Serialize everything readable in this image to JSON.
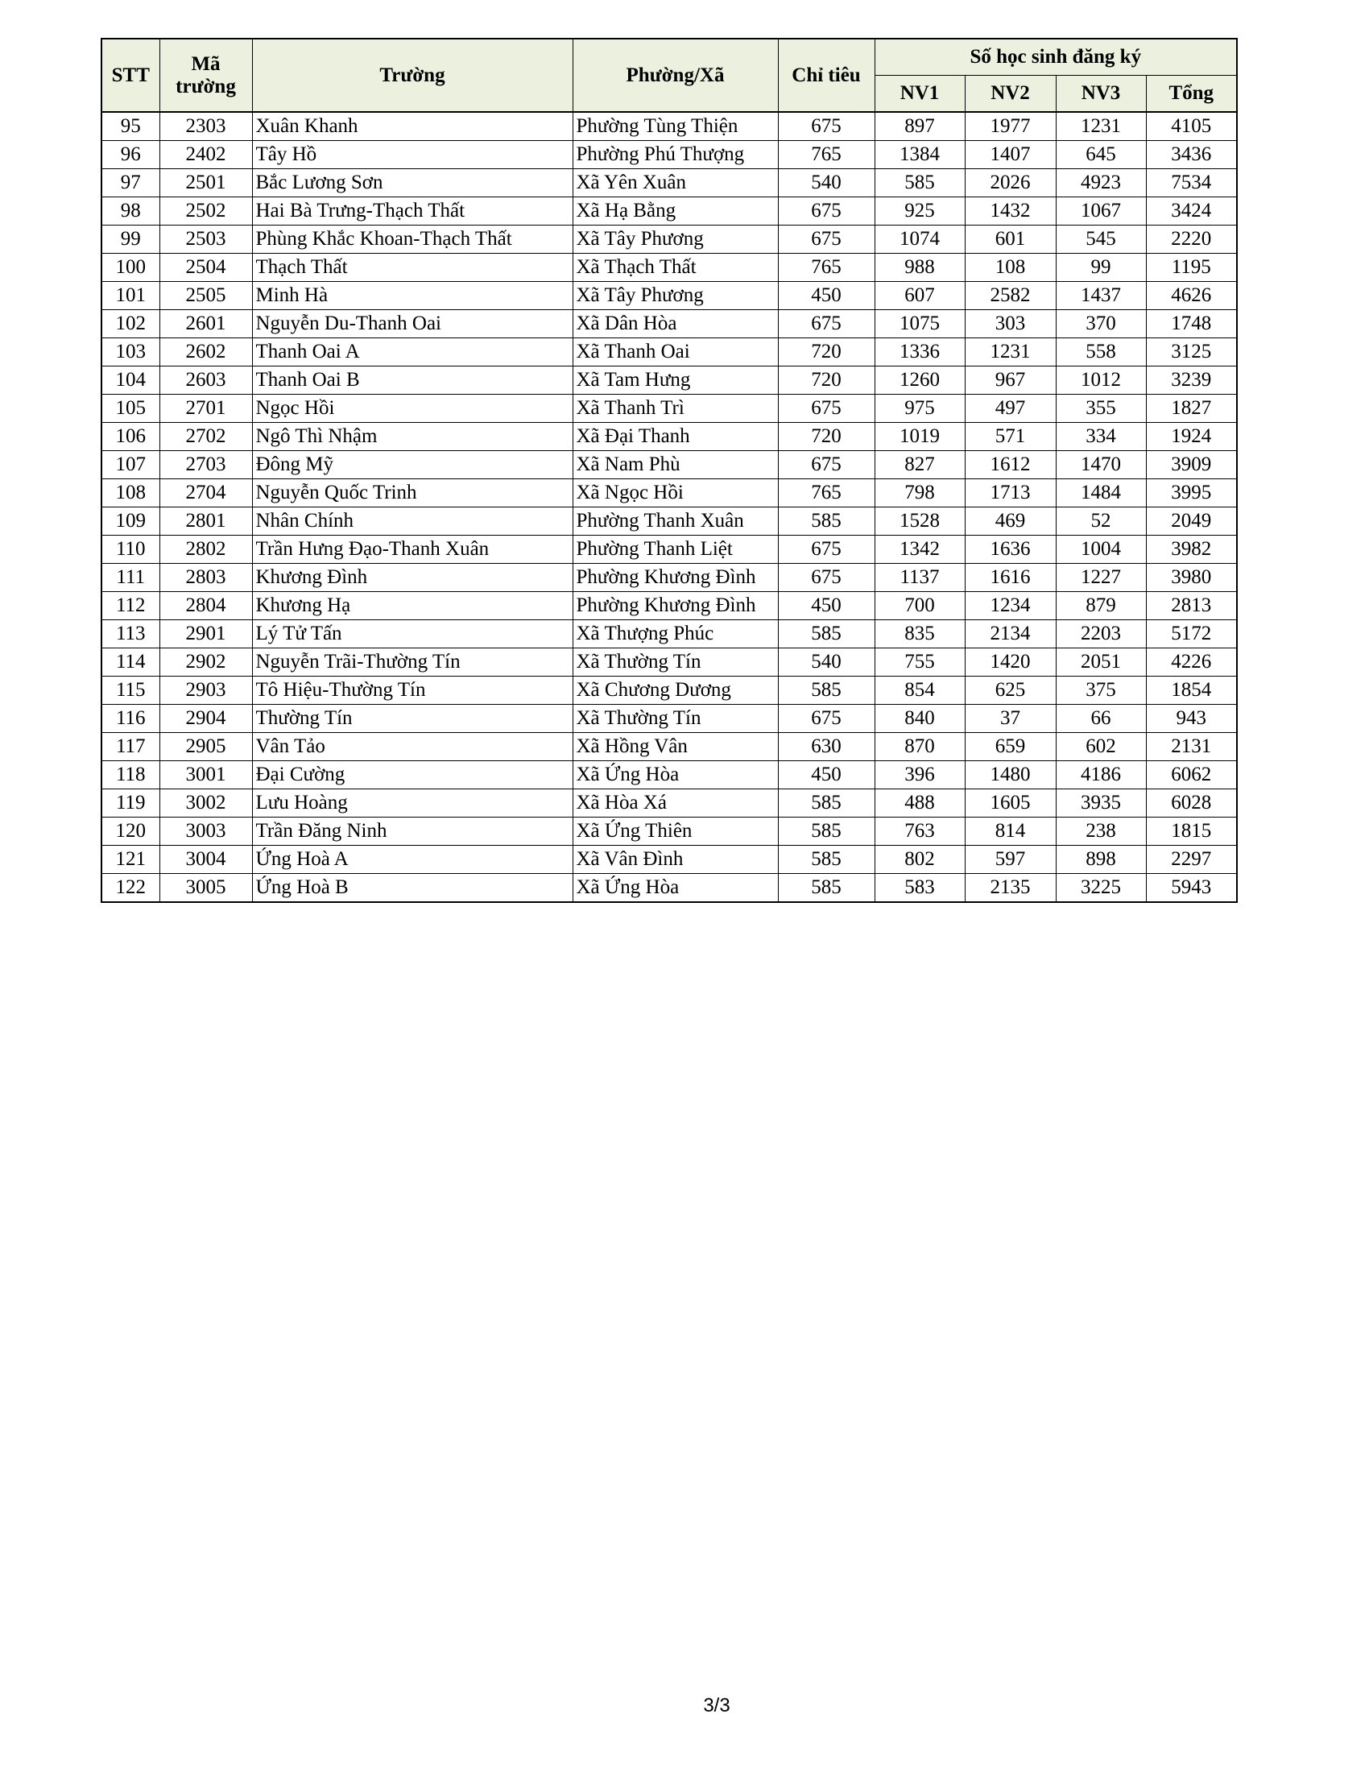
{
  "header": {
    "stt": "STT",
    "ma_truong": "Mã trường",
    "truong": "Trường",
    "phuong_xa": "Phường/Xã",
    "chi_tieu": "Chỉ tiêu",
    "group": "Số học sinh đăng ký",
    "nv1": "NV1",
    "nv2": "NV2",
    "nv3": "NV3",
    "tong": "Tổng"
  },
  "header_fill": "#ebf1de",
  "rows": [
    [
      "95",
      "2303",
      "Xuân Khanh",
      "Phường Tùng Thiện",
      "675",
      "897",
      "1977",
      "1231",
      "4105"
    ],
    [
      "96",
      "2402",
      "Tây Hồ",
      "Phường Phú Thượng",
      "765",
      "1384",
      "1407",
      "645",
      "3436"
    ],
    [
      "97",
      "2501",
      "Bắc Lương Sơn",
      "Xã Yên Xuân",
      "540",
      "585",
      "2026",
      "4923",
      "7534"
    ],
    [
      "98",
      "2502",
      "Hai Bà Trưng-Thạch Thất",
      "Xã Hạ Bằng",
      "675",
      "925",
      "1432",
      "1067",
      "3424"
    ],
    [
      "99",
      "2503",
      "Phùng Khắc Khoan-Thạch Thất",
      "Xã Tây Phương",
      "675",
      "1074",
      "601",
      "545",
      "2220"
    ],
    [
      "100",
      "2504",
      "Thạch Thất",
      "Xã Thạch Thất",
      "765",
      "988",
      "108",
      "99",
      "1195"
    ],
    [
      "101",
      "2505",
      "Minh Hà",
      "Xã Tây Phương",
      "450",
      "607",
      "2582",
      "1437",
      "4626"
    ],
    [
      "102",
      "2601",
      "Nguyễn Du-Thanh Oai",
      "Xã Dân Hòa",
      "675",
      "1075",
      "303",
      "370",
      "1748"
    ],
    [
      "103",
      "2602",
      "Thanh Oai A",
      "Xã Thanh Oai",
      "720",
      "1336",
      "1231",
      "558",
      "3125"
    ],
    [
      "104",
      "2603",
      "Thanh Oai B",
      "Xã Tam Hưng",
      "720",
      "1260",
      "967",
      "1012",
      "3239"
    ],
    [
      "105",
      "2701",
      "Ngọc Hồi",
      "Xã Thanh Trì",
      "675",
      "975",
      "497",
      "355",
      "1827"
    ],
    [
      "106",
      "2702",
      "Ngô Thì Nhậm",
      "Xã Đại Thanh",
      "720",
      "1019",
      "571",
      "334",
      "1924"
    ],
    [
      "107",
      "2703",
      "Đông Mỹ",
      "Xã Nam Phù",
      "675",
      "827",
      "1612",
      "1470",
      "3909"
    ],
    [
      "108",
      "2704",
      "Nguyễn Quốc Trinh",
      "Xã Ngọc Hồi",
      "765",
      "798",
      "1713",
      "1484",
      "3995"
    ],
    [
      "109",
      "2801",
      "Nhân Chính",
      "Phường Thanh Xuân",
      "585",
      "1528",
      "469",
      "52",
      "2049"
    ],
    [
      "110",
      "2802",
      "Trần Hưng Đạo-Thanh Xuân",
      "Phường Thanh Liệt",
      "675",
      "1342",
      "1636",
      "1004",
      "3982"
    ],
    [
      "111",
      "2803",
      "Khương Đình",
      "Phường Khương Đình",
      "675",
      "1137",
      "1616",
      "1227",
      "3980"
    ],
    [
      "112",
      "2804",
      "Khương Hạ",
      "Phường Khương Đình",
      "450",
      "700",
      "1234",
      "879",
      "2813"
    ],
    [
      "113",
      "2901",
      "Lý Tử Tấn",
      "Xã Thượng Phúc",
      "585",
      "835",
      "2134",
      "2203",
      "5172"
    ],
    [
      "114",
      "2902",
      "Nguyễn Trãi-Thường Tín",
      "Xã Thường Tín",
      "540",
      "755",
      "1420",
      "2051",
      "4226"
    ],
    [
      "115",
      "2903",
      "Tô Hiệu-Thường Tín",
      "Xã Chương Dương",
      "585",
      "854",
      "625",
      "375",
      "1854"
    ],
    [
      "116",
      "2904",
      "Thường Tín",
      "Xã Thường Tín",
      "675",
      "840",
      "37",
      "66",
      "943"
    ],
    [
      "117",
      "2905",
      "Vân Tảo",
      "Xã Hồng Vân",
      "630",
      "870",
      "659",
      "602",
      "2131"
    ],
    [
      "118",
      "3001",
      "Đại Cường",
      "Xã Ứng Hòa",
      "450",
      "396",
      "1480",
      "4186",
      "6062"
    ],
    [
      "119",
      "3002",
      "Lưu Hoàng",
      "Xã Hòa Xá",
      "585",
      "488",
      "1605",
      "3935",
      "6028"
    ],
    [
      "120",
      "3003",
      "Trần Đăng Ninh",
      "Xã Ứng Thiên",
      "585",
      "763",
      "814",
      "238",
      "1815"
    ],
    [
      "121",
      "3004",
      "Ứng Hoà A",
      "Xã Vân Đình",
      "585",
      "802",
      "597",
      "898",
      "2297"
    ],
    [
      "122",
      "3005",
      "Ứng Hoà B",
      "Xã Ứng Hòa",
      "585",
      "583",
      "2135",
      "3225",
      "5943"
    ]
  ],
  "footer": {
    "page_number": "3/3"
  }
}
